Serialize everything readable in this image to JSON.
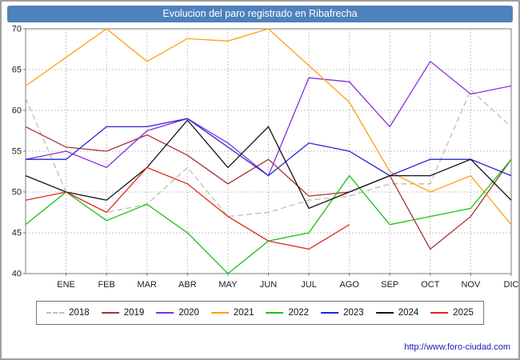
{
  "title": "Evolucion del paro registrado en Ribafrecha",
  "footer": {
    "url": "http://www.foro-ciudad.com"
  },
  "colors": {
    "titlebar": "#4f81bd",
    "grid": "#b4b4b4",
    "axis": "#7a7a7a"
  },
  "chart_data": {
    "type": "line",
    "title": "Evolucion del paro registrado en Ribafrecha",
    "xlabel": "",
    "ylabel": "",
    "ylim": [
      40,
      70
    ],
    "yticks": [
      40,
      45,
      50,
      55,
      60,
      65,
      70
    ],
    "grid": true,
    "legend_position": "bottom",
    "x_layout": "first value sits on the left axis edge, then one vertex per month label",
    "categories": [
      "ENE",
      "FEB",
      "MAR",
      "ABR",
      "MAY",
      "JUN",
      "JUL",
      "AGO",
      "SEP",
      "OCT",
      "NOV",
      "DIC"
    ],
    "series": [
      {
        "name": "2018",
        "color": "#bcbcbc",
        "dash": "7 4",
        "values": [
          61.5,
          50,
          47.5,
          48.5,
          53,
          47,
          47.5,
          49,
          49.5,
          51,
          51,
          62.5,
          58
        ]
      },
      {
        "name": "2019",
        "color": "#a83232",
        "values": [
          58,
          55.5,
          55,
          57,
          54.5,
          51,
          54,
          49.5,
          50,
          52,
          43,
          47,
          54
        ]
      },
      {
        "name": "2020",
        "color": "#8a2be2",
        "values": [
          54,
          55,
          53,
          57.5,
          59,
          56,
          52,
          64,
          63.5,
          58,
          66,
          62,
          63
        ]
      },
      {
        "name": "2021",
        "color": "#ffa014",
        "values": [
          63,
          66.5,
          70,
          66,
          68.8,
          68.5,
          70,
          65.5,
          61,
          52.5,
          50,
          52,
          46
        ]
      },
      {
        "name": "2022",
        "color": "#17c217",
        "values": [
          46,
          50,
          46.5,
          48.5,
          45,
          40,
          44,
          45,
          52,
          46,
          47,
          48,
          54
        ]
      },
      {
        "name": "2023",
        "color": "#2424d6",
        "values": [
          54,
          54,
          58,
          58,
          59,
          55.5,
          52,
          56,
          55,
          52,
          54,
          54,
          52
        ]
      },
      {
        "name": "2024",
        "color": "#141414",
        "values": [
          52,
          50,
          49,
          53,
          58.8,
          53,
          58,
          48,
          50,
          52,
          52,
          54,
          49
        ]
      },
      {
        "name": "2025",
        "color": "#e02818",
        "values": [
          49,
          50,
          47.5,
          53,
          51,
          47,
          44,
          43,
          46
        ]
      }
    ]
  }
}
